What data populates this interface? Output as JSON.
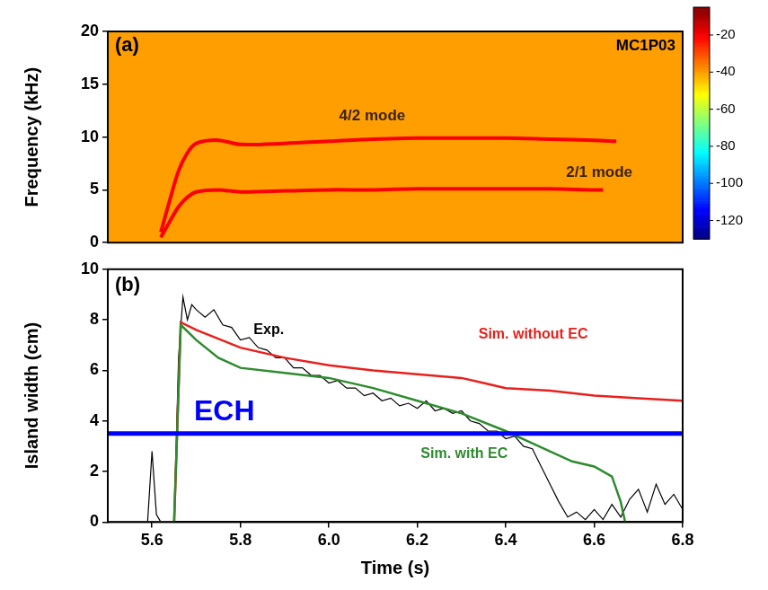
{
  "chart_data": [
    {
      "type": "spectrogram",
      "label": "(a)",
      "annotation": "MC1P03",
      "y_label": "Frequency (kHz)",
      "xlim": [
        5.5,
        6.8
      ],
      "ylim": [
        0,
        20
      ],
      "yticks": [
        0,
        5,
        10,
        15,
        20
      ],
      "tick_labels": "y",
      "noise_level": -40,
      "colorbar": {
        "range": [
          -130,
          -5
        ],
        "ticks": [
          -20,
          -40,
          -60,
          -80,
          -100,
          -120
        ]
      },
      "series": [
        {
          "name": "4/2 mode",
          "level": -20,
          "x": [
            5.62,
            5.64,
            5.66,
            5.68,
            5.7,
            5.75,
            5.8,
            5.9,
            6.0,
            6.1,
            6.2,
            6.3,
            6.4,
            6.5,
            6.6,
            6.65
          ],
          "values": [
            1.0,
            4.0,
            6.8,
            8.5,
            9.4,
            9.7,
            9.3,
            9.4,
            9.6,
            9.8,
            9.9,
            9.9,
            9.9,
            9.8,
            9.7,
            9.6
          ]
        },
        {
          "name": "2/1 mode",
          "level": -20,
          "x": [
            5.62,
            5.64,
            5.66,
            5.68,
            5.7,
            5.75,
            5.8,
            5.9,
            6.0,
            6.1,
            6.2,
            6.3,
            6.4,
            6.5,
            6.6,
            6.62
          ],
          "values": [
            0.5,
            2.0,
            3.4,
            4.3,
            4.8,
            5.0,
            4.8,
            4.9,
            5.0,
            5.0,
            5.1,
            5.1,
            5.1,
            5.1,
            5.0,
            5.0
          ]
        }
      ]
    },
    {
      "type": "line",
      "label": "(b)",
      "x_label": "Time (s)",
      "y_label": "Island width (cm)",
      "xlim": [
        5.5,
        6.8
      ],
      "xticks": [
        5.6,
        5.8,
        {
          "value": 6,
          "label": "6.0"
        },
        6.2,
        6.4,
        6.6,
        6.8
      ],
      "ylim": [
        0,
        10
      ],
      "yticks": [
        0,
        2,
        4,
        6,
        8,
        10
      ],
      "series": [
        {
          "name": "Exp.",
          "color": "#000000",
          "x": [
            5.5,
            5.55,
            5.59,
            5.6,
            5.61,
            5.62,
            5.65,
            5.66,
            5.67,
            5.68,
            5.69,
            5.7,
            5.72,
            5.74,
            5.76,
            5.78,
            5.8,
            5.82,
            5.84,
            5.86,
            5.88,
            5.9,
            5.92,
            5.94,
            5.96,
            5.98,
            6.0,
            6.02,
            6.04,
            6.06,
            6.08,
            6.1,
            6.12,
            6.14,
            6.16,
            6.18,
            6.2,
            6.22,
            6.24,
            6.26,
            6.28,
            6.3,
            6.32,
            6.34,
            6.36,
            6.38,
            6.4,
            6.42,
            6.44,
            6.46,
            6.48,
            6.5,
            6.52,
            6.54,
            6.56,
            6.58,
            6.6,
            6.62,
            6.64,
            6.66,
            6.68,
            6.7,
            6.72,
            6.74,
            6.76,
            6.78,
            6.8
          ],
          "values": [
            0,
            0,
            0,
            2.8,
            0.3,
            0,
            0,
            6.5,
            8.9,
            8.0,
            8.6,
            8.4,
            8.1,
            8.4,
            7.8,
            7.7,
            7.2,
            7.3,
            6.9,
            6.8,
            6.5,
            6.5,
            6.1,
            6.1,
            5.8,
            5.8,
            5.5,
            5.6,
            5.3,
            5.3,
            5.0,
            5.1,
            4.8,
            4.9,
            4.6,
            4.7,
            4.5,
            4.8,
            4.4,
            4.5,
            4.3,
            4.4,
            4.0,
            3.9,
            3.6,
            3.6,
            3.3,
            3.4,
            3.0,
            2.9,
            2.2,
            1.5,
            0.8,
            0.2,
            0.4,
            0.1,
            0.5,
            0.1,
            0.7,
            0.2,
            0.9,
            1.3,
            0.4,
            1.5,
            0.7,
            1.1,
            0.5
          ]
        },
        {
          "name": "Sim. without EC",
          "color": "#e8201c",
          "x": [
            5.5,
            5.65,
            5.665,
            5.7,
            5.8,
            5.9,
            6.0,
            6.1,
            6.2,
            6.3,
            6.35,
            6.4,
            6.5,
            6.6,
            6.7,
            6.8
          ],
          "values": [
            0,
            0,
            7.9,
            7.6,
            6.9,
            6.5,
            6.2,
            6.0,
            5.85,
            5.7,
            5.5,
            5.3,
            5.2,
            5.0,
            4.9,
            4.8
          ]
        },
        {
          "name": "Sim. with EC",
          "color": "#2e8b2e",
          "x": [
            5.5,
            5.65,
            5.665,
            5.7,
            5.75,
            5.8,
            5.9,
            6.0,
            6.1,
            6.2,
            6.3,
            6.4,
            6.45,
            6.5,
            6.55,
            6.6,
            6.64,
            6.66,
            6.67
          ],
          "values": [
            0,
            0,
            7.8,
            7.2,
            6.5,
            6.1,
            5.9,
            5.7,
            5.3,
            4.8,
            4.3,
            3.6,
            3.2,
            2.8,
            2.4,
            2.2,
            1.8,
            0.8,
            0
          ]
        }
      ],
      "hlines": [
        {
          "value": 3.5,
          "label": "ECH",
          "color": "#0000ff"
        }
      ]
    }
  ]
}
